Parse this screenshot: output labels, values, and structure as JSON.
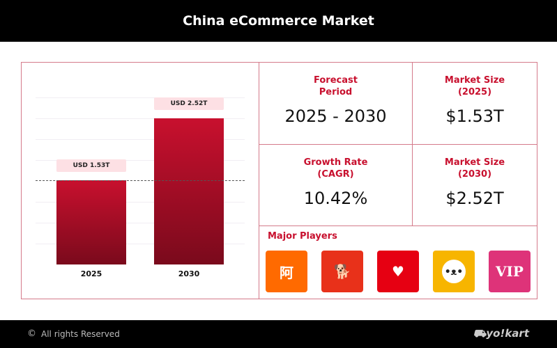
{
  "header": {
    "title": "China eCommerce Market"
  },
  "chart_data": {
    "type": "bar",
    "categories": [
      "2025",
      "2030"
    ],
    "values": [
      1.53,
      2.52
    ],
    "data_labels": [
      "USD 1.53T",
      "USD 2.52T"
    ],
    "ylim": [
      0,
      2.52
    ],
    "reference_line": 1.53,
    "colors": [
      "#c8102e",
      "#7a0a1c"
    ]
  },
  "stats": [
    {
      "title": "Forecast Period",
      "value": "2025 - 2030"
    },
    {
      "title": "Market Size (2025)",
      "value": "$1.53T"
    },
    {
      "title": "Growth Rate (CAGR)",
      "value": "10.42%"
    },
    {
      "title": "Market Size (2030)",
      "value": "$2.52T"
    }
  ],
  "players": {
    "title": "Major Players",
    "logos": [
      {
        "icon": "alibaba-icon",
        "color": "#ff6a00"
      },
      {
        "icon": "jd-icon",
        "color": "#e8311a"
      },
      {
        "icon": "pinduoduo-icon",
        "color": "#e60012"
      },
      {
        "icon": "meituan-icon",
        "color": "#f7b500"
      },
      {
        "icon": "vipshop-icon",
        "color": "#de3379"
      }
    ]
  },
  "footer": {
    "copyright": "All rights Reserved",
    "brand": "yo!kart"
  }
}
